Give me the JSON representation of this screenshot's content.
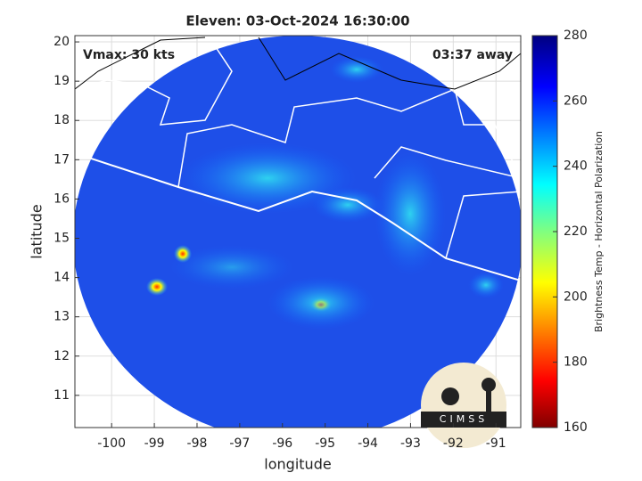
{
  "chart_data": {
    "type": "map",
    "title": "Eleven: 03-Oct-2024 16:30:00",
    "annotations": [
      "Vmax: 30 kts",
      "03:37 away"
    ],
    "xlabel": "longitude",
    "ylabel": "latitude",
    "xlim": [
      -100.86,
      -90.42
    ],
    "xticks": [
      -100,
      -99,
      -98,
      -97,
      -96,
      -95,
      -94,
      -93,
      -92,
      -91
    ],
    "ylim": [
      10.18,
      20.16
    ],
    "yticks": [
      11,
      12,
      13,
      14,
      15,
      16,
      17,
      18,
      19,
      20
    ],
    "grid": true,
    "colorbar": {
      "label": "Brightness Temp - Horizontal Polarization",
      "lim": [
        160,
        280
      ],
      "ticks": [
        160,
        180,
        200,
        220,
        240,
        260,
        280
      ],
      "colormap": "jet"
    },
    "logo": "CIMSS"
  }
}
